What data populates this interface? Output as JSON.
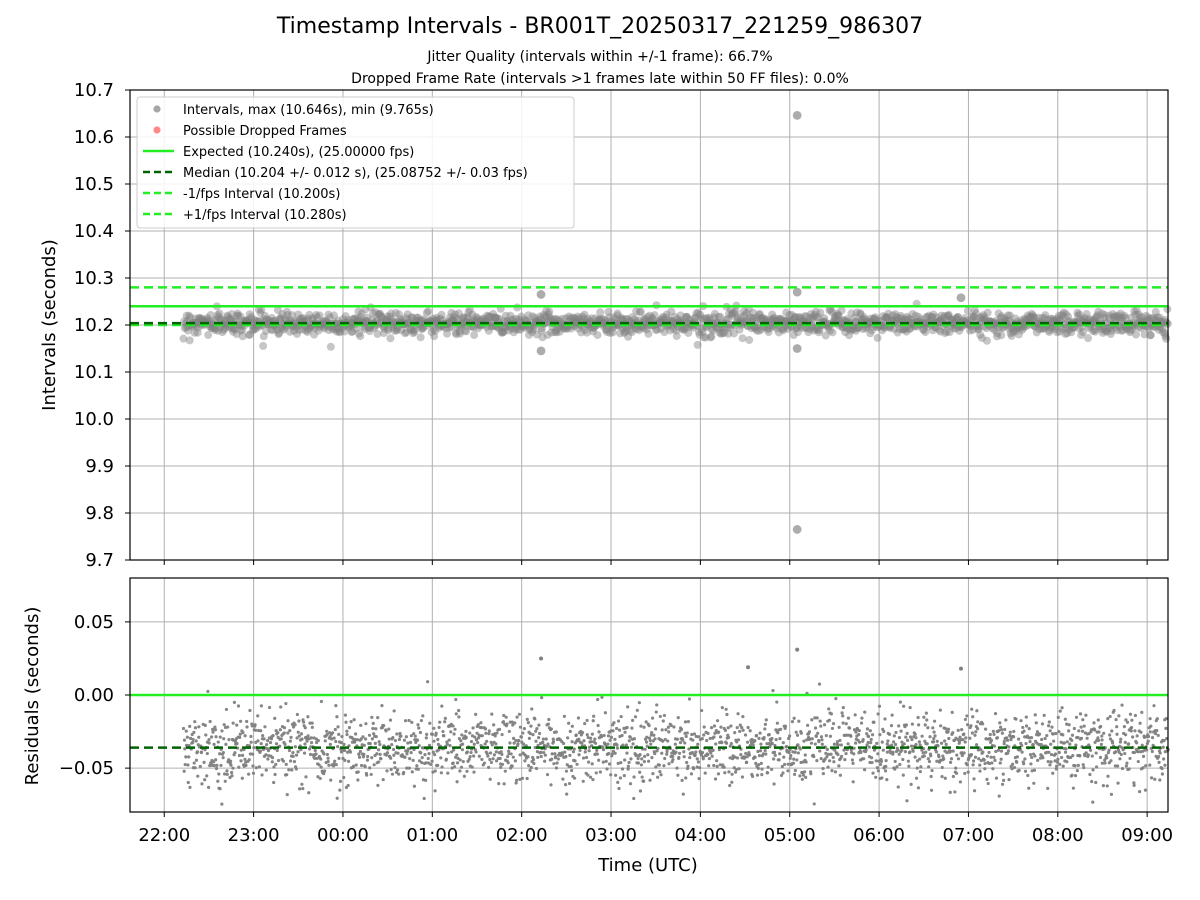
{
  "title": "Timestamp Intervals - BR001T_20250317_221259_986307",
  "subtitle1": "Jitter Quality (intervals within +/-1 frame): 66.7%",
  "subtitle2": "Dropped Frame Rate (intervals >1 frames late within 50 FF files): 0.0%",
  "colors": {
    "points": "#808080",
    "dropped": "#ff5555",
    "expected": "#22ee22",
    "median": "#006400",
    "fps_interval": "#22ee22",
    "grid": "#b0b0b0"
  },
  "chart_data": [
    {
      "type": "scatter",
      "ylabel": "Intervals (seconds)",
      "xlim": [
        "21:37",
        "09:14"
      ],
      "ylim": [
        9.7,
        10.7
      ],
      "yticks": [
        "9.7",
        "9.8",
        "9.9",
        "10.0",
        "10.1",
        "10.2",
        "10.3",
        "10.4",
        "10.5",
        "10.6",
        "10.7"
      ],
      "grid": true,
      "legend_position": "upper-left",
      "legend": [
        {
          "label": "Intervals, max (10.646s), min (9.765s)",
          "kind": "marker",
          "color": "#808080"
        },
        {
          "label": "Possible Dropped Frames",
          "kind": "marker",
          "color": "#ff5555"
        },
        {
          "label": "Expected (10.240s), (25.00000 fps)",
          "kind": "solid",
          "color": "#22ee22"
        },
        {
          "label": "Median (10.204 +/- 0.012 s), (25.08752 +/- 0.03 fps)",
          "kind": "dashed",
          "color": "#006400"
        },
        {
          "label": "-1/fps Interval (10.200s)",
          "kind": "dashed",
          "color": "#22ee22"
        },
        {
          "label": "+1/fps Interval (10.280s)",
          "kind": "dashed",
          "color": "#22ee22"
        }
      ],
      "reference_lines": {
        "expected": 10.24,
        "median": 10.204,
        "minus_1fps": 10.2,
        "plus_1fps": 10.28
      },
      "series": {
        "start": "22:13",
        "end": "09:14",
        "interval_s": 10.2,
        "center": 10.204,
        "spread": 0.012,
        "outliers": [
          {
            "x": "05:05",
            "y": 10.646
          },
          {
            "x": "05:05",
            "y": 9.765
          },
          {
            "x": "05:05",
            "y": 10.27
          },
          {
            "x": "02:13",
            "y": 10.265
          },
          {
            "x": "06:55",
            "y": 10.258
          },
          {
            "x": "05:05",
            "y": 10.15
          },
          {
            "x": "02:13",
            "y": 10.145
          }
        ]
      }
    },
    {
      "type": "scatter",
      "xlabel": "Time (UTC)",
      "ylabel": "Residuals (seconds)",
      "xlim": [
        "21:37",
        "09:14"
      ],
      "ylim": [
        -0.08,
        0.08
      ],
      "yticks": [
        "−0.05",
        "0.00",
        "0.05"
      ],
      "ytick_values": [
        -0.05,
        0.0,
        0.05
      ],
      "xticks": [
        "22:00",
        "23:00",
        "00:00",
        "01:00",
        "02:00",
        "03:00",
        "04:00",
        "05:00",
        "06:00",
        "07:00",
        "08:00",
        "09:00"
      ],
      "grid": true,
      "reference_lines": {
        "expected": 0.0,
        "median": -0.036
      },
      "series": {
        "start": "22:13",
        "end": "09:14",
        "center": -0.036,
        "spread": 0.012,
        "outliers": [
          {
            "x": "05:05",
            "y": 0.031
          },
          {
            "x": "02:13",
            "y": 0.025
          },
          {
            "x": "06:55",
            "y": 0.018
          },
          {
            "x": "04:32",
            "y": 0.019
          }
        ]
      }
    }
  ]
}
